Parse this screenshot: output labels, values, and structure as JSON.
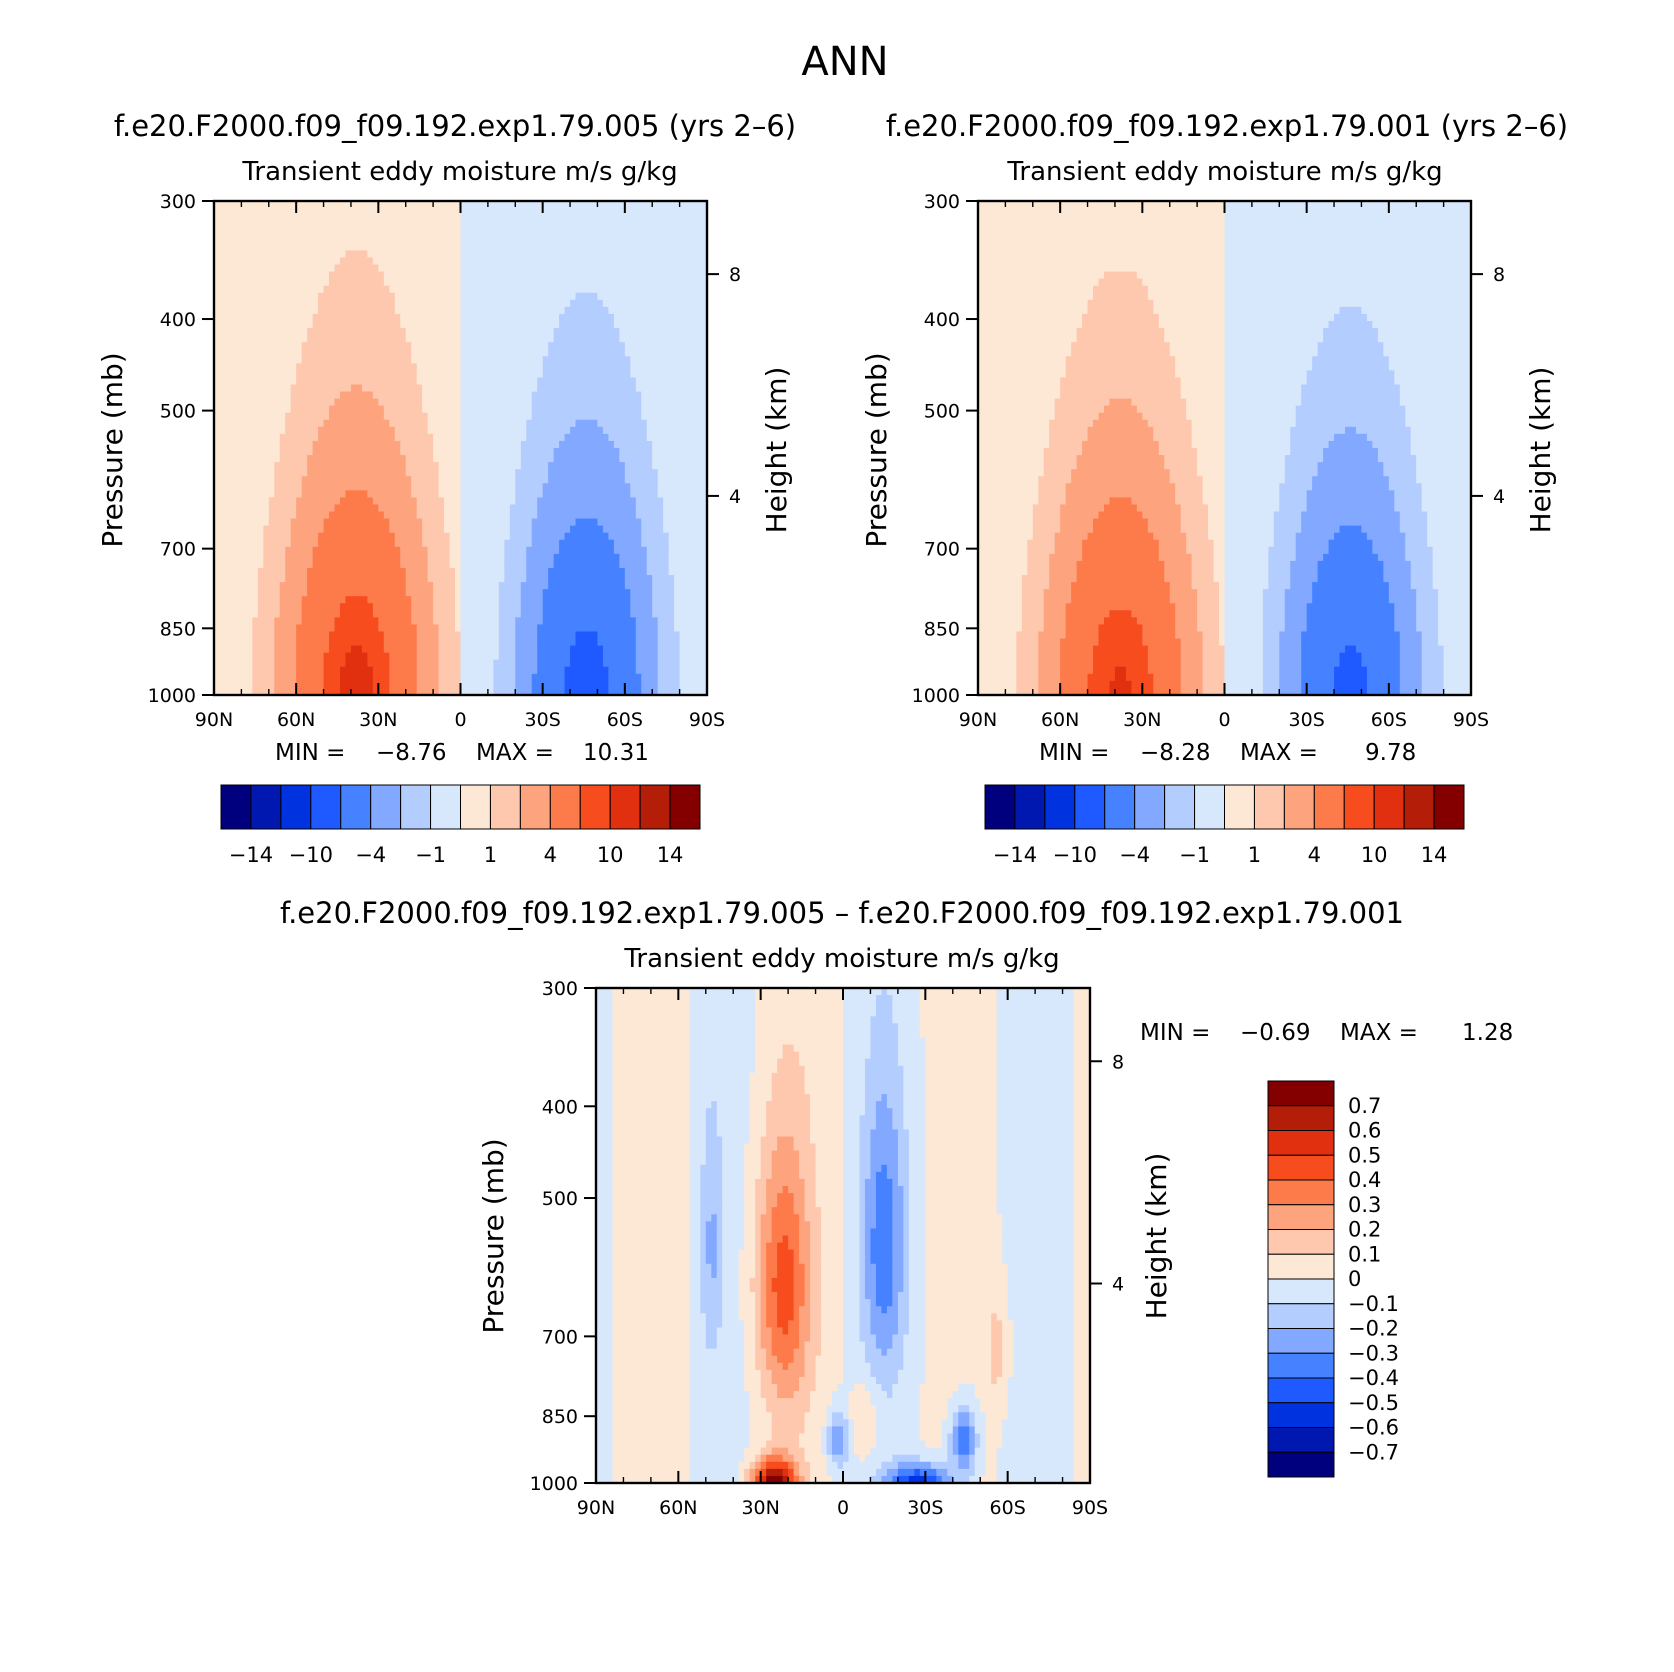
{
  "figure": {
    "title": "ANN",
    "diff_title": "f.e20.F2000.f09_f09.192.exp1.79.005 – f.e20.F2000.f09_f09.192.exp1.79.001"
  },
  "colors": {
    "scale": [
      "#00007f",
      "#0018b0",
      "#0032e0",
      "#1e5aff",
      "#4682ff",
      "#82a9ff",
      "#b4cdff",
      "#d8e8fc",
      "#fde8d6",
      "#fdc8ad",
      "#fda47e",
      "#fd7a4a",
      "#f74c1e",
      "#e03010",
      "#b41e08",
      "#840000"
    ]
  },
  "chart_data": [
    {
      "type": "contour",
      "id": "model1",
      "case_title": "f.e20.F2000.f09_f09.192.exp1.79.005 (yrs 2–6)",
      "title": "Transient eddy moisture m/s g/kg",
      "ylabel": "Pressure (mb)",
      "ylabel_right": "Height (km)",
      "x_ticks": [
        "90N",
        "60N",
        "30N",
        "0",
        "30S",
        "60S",
        "90S"
      ],
      "y_ticks": [
        300,
        400,
        500,
        700,
        850,
        1000
      ],
      "y_right_ticks": [
        8,
        4
      ],
      "ylim": [
        1000,
        300
      ],
      "min_label": "MIN =",
      "min": "−8.76",
      "max_label": "MAX =",
      "max": "10.31",
      "colorbar_labels": [
        "−14",
        "−10",
        "−4",
        "−1",
        "1",
        "4",
        "10",
        "14"
      ],
      "features": [
        {
          "sign": 1,
          "lat": 38,
          "p": 1000,
          "amp": 10.3,
          "wlat": 22,
          "wp": 380
        },
        {
          "sign": -1,
          "lat": -46,
          "p": 1000,
          "amp": 8.8,
          "wlat": 20,
          "wp": 370
        }
      ]
    },
    {
      "type": "contour",
      "id": "model2",
      "case_title": "f.e20.F2000.f09_f09.192.exp1.79.001 (yrs 2–6)",
      "title": "Transient eddy moisture m/s g/kg",
      "ylabel": "Pressure (mb)",
      "ylabel_right": "Height (km)",
      "x_ticks": [
        "90N",
        "60N",
        "30N",
        "0",
        "30S",
        "60S",
        "90S"
      ],
      "y_ticks": [
        300,
        400,
        500,
        700,
        850,
        1000
      ],
      "y_right_ticks": [
        8,
        4
      ],
      "ylim": [
        1000,
        300
      ],
      "min_label": "MIN =",
      "min": "−8.28",
      "max_label": "MAX =",
      "max": "9.78",
      "colorbar_labels": [
        "−14",
        "−10",
        "−4",
        "−1",
        "1",
        "4",
        "10",
        "14"
      ],
      "features": [
        {
          "sign": 1,
          "lat": 38,
          "p": 1000,
          "amp": 9.8,
          "wlat": 22,
          "wp": 375
        },
        {
          "sign": -1,
          "lat": -46,
          "p": 1000,
          "amp": 8.3,
          "wlat": 20,
          "wp": 365
        }
      ]
    },
    {
      "type": "contour",
      "id": "diff",
      "title": "Transient eddy moisture m/s g/kg",
      "ylabel": "Pressure (mb)",
      "ylabel_right": "Height (km)",
      "x_ticks": [
        "90N",
        "60N",
        "30N",
        "0",
        "30S",
        "60S",
        "90S"
      ],
      "y_ticks": [
        300,
        400,
        500,
        700,
        850,
        1000
      ],
      "y_right_ticks": [
        8,
        4
      ],
      "ylim": [
        1000,
        300
      ],
      "min_label": "MIN =",
      "min": "−0.69",
      "max_label": "MAX =",
      "max": "1.28",
      "colorbar_labels": [
        "0.7",
        "0.6",
        "0.5",
        "0.4",
        "0.3",
        "0.2",
        "0.1",
        "0",
        "−0.1",
        "−0.2",
        "−0.3",
        "−0.4",
        "−0.5",
        "−0.6",
        "−0.7"
      ],
      "features": [
        {
          "sign": 1,
          "lat": 22,
          "p": 620,
          "amp": 0.42,
          "wlat": 10,
          "wp": 200
        },
        {
          "sign": 1,
          "lat": 25,
          "p": 1000,
          "amp": 0.75,
          "wlat": 8,
          "wp": 60
        },
        {
          "sign": -1,
          "lat": -15,
          "p": 560,
          "amp": 0.33,
          "wlat": 8,
          "wp": 190
        },
        {
          "sign": -1,
          "lat": -28,
          "p": 1000,
          "amp": 0.55,
          "wlat": 12,
          "wp": 45
        },
        {
          "sign": -1,
          "lat": -44,
          "p": 900,
          "amp": 0.4,
          "wlat": 5,
          "wp": 80
        },
        {
          "sign": -1,
          "lat": 2,
          "p": 900,
          "amp": 0.3,
          "wlat": 4,
          "wp": 60
        },
        {
          "sign": -1,
          "lat": 48,
          "p": 560,
          "amp": 0.18,
          "wlat": 4,
          "wp": 160
        },
        {
          "sign": 1,
          "lat": -56,
          "p": 720,
          "amp": 0.14,
          "wlat": 4,
          "wp": 100
        },
        {
          "sign": 1,
          "lat": -8,
          "p": 860,
          "amp": 0.14,
          "wlat": 5,
          "wp": 80
        }
      ]
    }
  ]
}
